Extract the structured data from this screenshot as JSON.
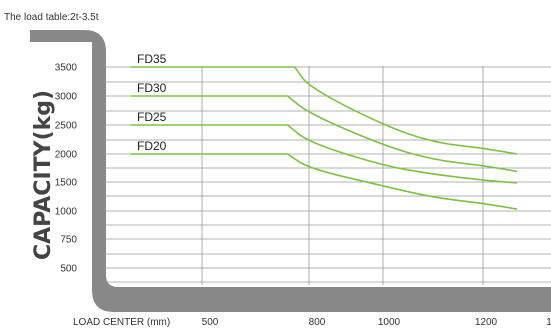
{
  "caption": "The load table:2t-3.5t",
  "chart_data": {
    "type": "line",
    "title": "",
    "xlabel": "LOAD CENTER (mm)",
    "ylabel": "CAPACITY(kg)",
    "x_ticks": [
      "500",
      "800",
      "1000",
      "1200",
      "1"
    ],
    "y_ticks": [
      "3500",
      "3000",
      "2500",
      "2000",
      "1500",
      "1000",
      "750",
      "500"
    ],
    "xlim": [
      300,
      1400
    ],
    "grid": true,
    "series": [
      {
        "name": "FD35",
        "x": [
          300,
          760,
          800,
          1000,
          1100,
          1200,
          1300
        ],
        "y": [
          3500,
          3500,
          3150,
          2500,
          2200,
          2100,
          2000
        ]
      },
      {
        "name": "FD30",
        "x": [
          300,
          740,
          800,
          1000,
          1100,
          1200,
          1300
        ],
        "y": [
          3000,
          3000,
          2700,
          2150,
          1900,
          1800,
          1700
        ]
      },
      {
        "name": "FD25",
        "x": [
          300,
          740,
          800,
          1000,
          1100,
          1200,
          1300
        ],
        "y": [
          2500,
          2500,
          2200,
          1800,
          1650,
          1550,
          1500
        ]
      },
      {
        "name": "FD20",
        "x": [
          300,
          740,
          800,
          1000,
          1100,
          1200,
          1300
        ],
        "y": [
          2000,
          2000,
          1750,
          1450,
          1250,
          1150,
          1050
        ]
      }
    ],
    "colors": {
      "line": "#7dc242",
      "grid": "#9a9a9a",
      "frame": "#888888"
    }
  }
}
